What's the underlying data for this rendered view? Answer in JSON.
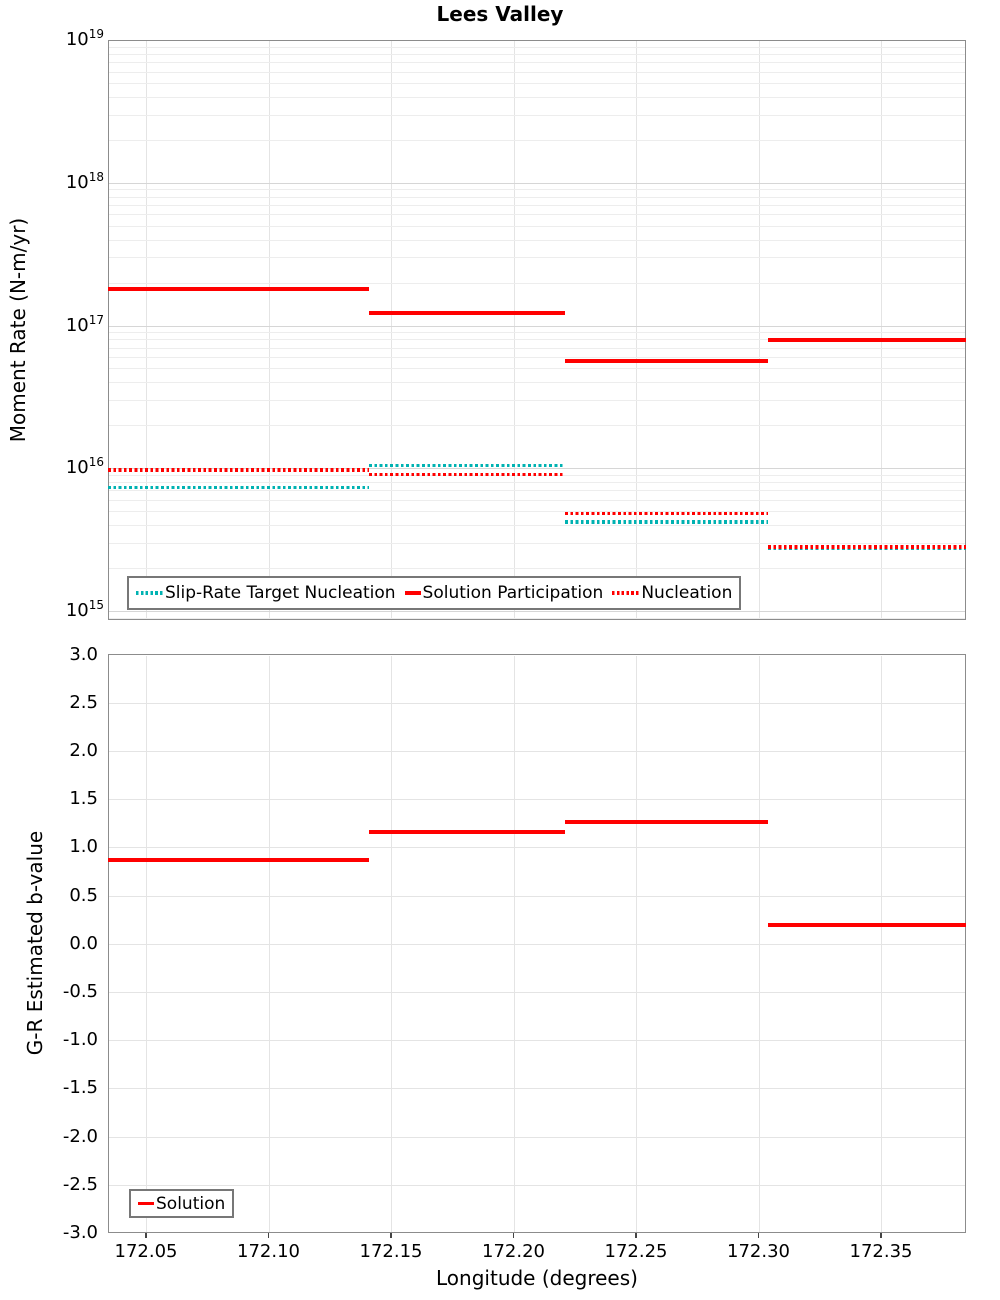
{
  "title": "Lees Valley",
  "colors": {
    "series_red": "#ff0000",
    "series_teal": "#00b2b2",
    "grid_major": "#d6d6d6",
    "grid_minor": "#ededed",
    "grid_vertical": "#e4e4e4",
    "panel_border": "#8c8c8c",
    "legend_border": "#777777"
  },
  "chart_data": [
    {
      "type": "line",
      "panel": "moment-rate",
      "title": "Lees Valley",
      "xlabel": "",
      "ylabel": "Moment Rate (N-m/yr)",
      "yscale": "log",
      "ylim": [
        1000000000000000.0,
        1e+19
      ],
      "xlim": [
        172.034,
        172.385
      ],
      "grid": true,
      "legend_position": "lower-left",
      "yticks_exponents": [
        19,
        18,
        17,
        16,
        15
      ],
      "segment_edges_longitude": [
        172.034,
        172.141,
        172.221,
        172.304,
        172.385
      ],
      "series": [
        {
          "name": "Slip-Rate Target Nucleation",
          "style": "dotted",
          "color": "#00b2b2",
          "values": [
            7300000000000000.0,
            1.04e+16,
            4200000000000000.0,
            2750000000000000.0
          ]
        },
        {
          "name": "Solution Participation",
          "style": "solid",
          "color": "#ff0000",
          "values": [
            1.8e+17,
            1.22e+17,
            5.6e+16,
            7.9e+16
          ]
        },
        {
          "name": "Nucleation",
          "style": "dotted",
          "color": "#ff0000",
          "values": [
            9700000000000000.0,
            9000000000000000.0,
            4800000000000000.0,
            2800000000000000.0
          ]
        }
      ]
    },
    {
      "type": "line",
      "panel": "b-value",
      "title": "",
      "xlabel": "Longitude (degrees)",
      "ylabel": "G-R Estimated b-value",
      "yscale": "linear",
      "ylim": [
        -3.0,
        3.0
      ],
      "xlim": [
        172.034,
        172.385
      ],
      "grid": true,
      "legend_position": "lower-left",
      "yticks": [
        3.0,
        2.5,
        2.0,
        1.5,
        1.0,
        0.5,
        0.0,
        -0.5,
        -1.0,
        -1.5,
        -2.0,
        -2.5,
        -3.0
      ],
      "xticks": [
        172.05,
        172.1,
        172.15,
        172.2,
        172.25,
        172.3,
        172.35
      ],
      "segment_edges_longitude": [
        172.034,
        172.141,
        172.221,
        172.304,
        172.385
      ],
      "series": [
        {
          "name": "Solution",
          "style": "solid",
          "color": "#ff0000",
          "values": [
            0.87,
            1.16,
            1.26,
            0.19
          ]
        }
      ]
    }
  ]
}
